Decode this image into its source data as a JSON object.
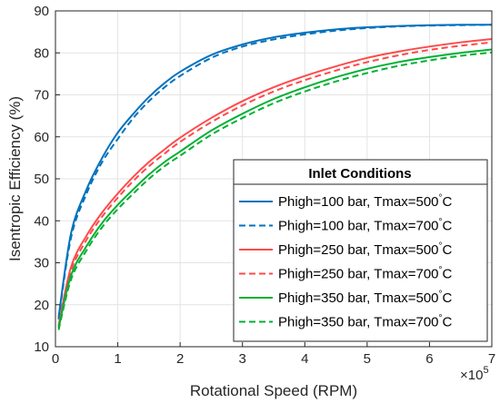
{
  "chart_data": {
    "type": "line",
    "xlabel": "Rotational Speed (RPM)",
    "ylabel": "Isentropic Efficiency (%)",
    "x_exponent_base": "×10",
    "x_exponent_power": "5",
    "xlim": [
      0,
      7
    ],
    "ylim": [
      10,
      90
    ],
    "x_scale_factor": 100000,
    "xticks": [
      "0",
      "1",
      "2",
      "3",
      "4",
      "5",
      "6",
      "7"
    ],
    "yticks": [
      "10",
      "20",
      "30",
      "40",
      "50",
      "60",
      "70",
      "80",
      "90"
    ],
    "grid": true,
    "legend": {
      "title": "Inlet Conditions",
      "placement": "bottom-right"
    },
    "x": [
      0.05,
      0.25,
      0.5,
      0.75,
      1.0,
      1.25,
      1.5,
      1.75,
      2.0,
      2.5,
      3.0,
      3.5,
      4.0,
      4.5,
      5.0,
      5.5,
      6.0,
      6.5,
      7.0
    ],
    "series": [
      {
        "name": "Phigh=100 bar, Tmax=500°C",
        "name_prefix": "Phigh=100 bar, Tmax=500",
        "color": "#0072BD",
        "dash": "solid",
        "values": [
          17,
          37,
          47.5,
          55,
          61,
          65.5,
          69.5,
          72.8,
          75.5,
          79.5,
          82,
          83.7,
          84.8,
          85.6,
          86.1,
          86.4,
          86.6,
          86.7,
          86.7
        ]
      },
      {
        "name": "Phigh=100 bar, Tmax=700°C",
        "name_prefix": "Phigh=100 bar, Tmax=700",
        "color": "#0072BD",
        "dash": "dashed",
        "values": [
          16.5,
          36,
          46.5,
          54,
          59.5,
          64.5,
          68.5,
          71.8,
          74.5,
          78.8,
          81.5,
          83.2,
          84.4,
          85.3,
          85.9,
          86.3,
          86.5,
          86.6,
          86.7
        ]
      },
      {
        "name": "Phigh=250 bar, Tmax=500°C",
        "name_prefix": "Phigh=250 bar, Tmax=500",
        "color": "#FF4A4A",
        "dash": "solid",
        "values": [
          15,
          29,
          36.5,
          42,
          46.5,
          50.5,
          54,
          57,
          59.8,
          64.5,
          68.5,
          71.8,
          74.5,
          76.8,
          78.8,
          80.3,
          81.5,
          82.5,
          83.3
        ]
      },
      {
        "name": "Phigh=250 bar, Tmax=700°C",
        "name_prefix": "Phigh=250 bar, Tmax=700",
        "color": "#FF4A4A",
        "dash": "dashed",
        "values": [
          14.5,
          28,
          35.5,
          41,
          45.5,
          49.5,
          53,
          56,
          58.8,
          63.5,
          67.5,
          70.8,
          73.5,
          75.8,
          77.8,
          79.4,
          80.7,
          81.7,
          82.5
        ]
      },
      {
        "name": "Phigh=350 bar, Tmax=500°C",
        "name_prefix": "Phigh=350 bar, Tmax=500",
        "color": "#00B032",
        "dash": "solid",
        "values": [
          14.5,
          27,
          34,
          39.5,
          43.8,
          47.5,
          51,
          54,
          56.5,
          61.5,
          65.5,
          69,
          71.8,
          74.2,
          76.2,
          77.8,
          79,
          80,
          80.8
        ]
      },
      {
        "name": "Phigh=350 bar, Tmax=700°C",
        "name_prefix": "Phigh=350 bar, Tmax=700",
        "color": "#00B032",
        "dash": "dashed",
        "values": [
          14,
          26,
          33,
          38.5,
          42.8,
          46.5,
          50,
          53,
          55.5,
          60.5,
          64.5,
          68,
          70.8,
          73.2,
          75.2,
          76.9,
          78.2,
          79.3,
          80.1
        ]
      }
    ],
    "legend_unit_symbol": "°",
    "legend_unit_letter": "C"
  }
}
